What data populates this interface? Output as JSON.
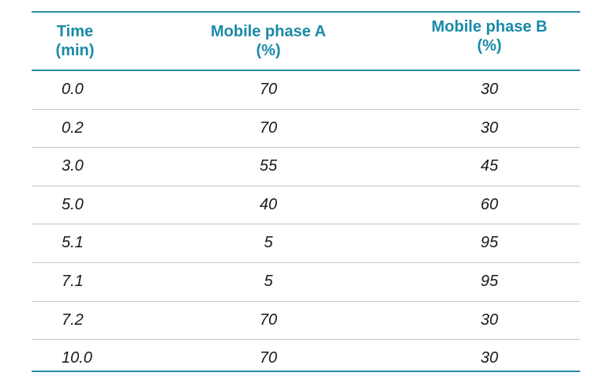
{
  "table": {
    "headers": {
      "time": [
        "Time",
        "(min)"
      ],
      "phase_a": [
        "Mobile phase A",
        "(%)"
      ],
      "phase_b": [
        "Mobile phase B",
        "(%)"
      ]
    },
    "rows": [
      {
        "time": "0.0",
        "a": "70",
        "b": "30"
      },
      {
        "time": "0.2",
        "a": "70",
        "b": "30"
      },
      {
        "time": "3.0",
        "a": "55",
        "b": "45"
      },
      {
        "time": "5.0",
        "a": "40",
        "b": "60"
      },
      {
        "time": "5.1",
        "a": "5",
        "b": "95"
      },
      {
        "time": "7.1",
        "a": "5",
        "b": "95"
      },
      {
        "time": "7.2",
        "a": "70",
        "b": "30"
      },
      {
        "time": "10.0",
        "a": "70",
        "b": "30"
      }
    ]
  },
  "colors": {
    "header_text": "#1a8aa8",
    "rule": "#2b8ba3",
    "row_divider": "#c8c8c8",
    "body_text": "#1a1a1a"
  }
}
